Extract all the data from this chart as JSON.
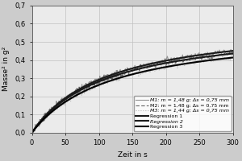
{
  "title": "",
  "xlabel": "Zeit in s",
  "ylabel": "Masse² in g²",
  "xlim": [
    0,
    300
  ],
  "ylim": [
    0,
    0.7
  ],
  "xticks": [
    0,
    50,
    100,
    150,
    200,
    250,
    300
  ],
  "yticks": [
    0.0,
    0.1,
    0.2,
    0.3,
    0.4,
    0.5,
    0.6,
    0.7
  ],
  "legend": [
    {
      "label": "M1: m = 1,48 g; Δs = 0,75 mm",
      "color": "#888888",
      "lw": 0.8,
      "ls": "-"
    },
    {
      "label": "Regression 1",
      "color": "#1a1a1a",
      "lw": 1.5,
      "ls": "-"
    },
    {
      "label": "M2: m = 1,48 g; Δs = 0,75 mm",
      "color": "#555555",
      "lw": 0.8,
      "ls": "--"
    },
    {
      "label": "Regression 2",
      "color": "#1a1a1a",
      "lw": 1.5,
      "ls": "-"
    },
    {
      "label": "M3: m = 1,44 g; Δs = 0,75 mm",
      "color": "#b0b0b0",
      "lw": 0.8,
      "ls": ":"
    },
    {
      "label": "Regression 3",
      "color": "#000000",
      "lw": 1.5,
      "ls": "-"
    }
  ],
  "A1": 0.0048,
  "B1": 130,
  "A2": 0.0047,
  "B2": 128,
  "A3": 0.0044,
  "B3": 140,
  "noise1": 0.006,
  "noise2": 0.006,
  "noise3": 0.005,
  "bg_color": "#cccccc",
  "plot_bg_color": "#ebebeb"
}
